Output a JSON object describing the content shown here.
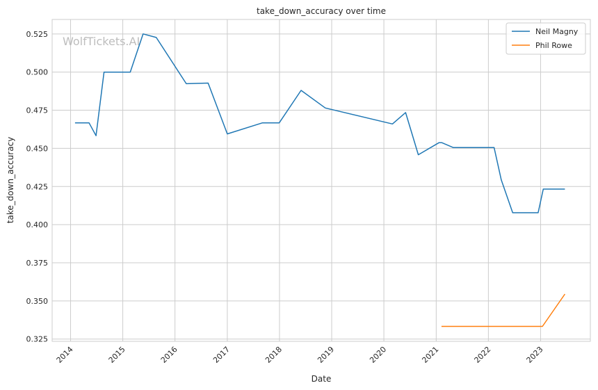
{
  "chart_data": {
    "type": "line",
    "title": "take_down_accuracy over time",
    "xlabel": "Date",
    "ylabel": "take_down_accuracy",
    "watermark": "WolfTickets.AI",
    "x_ticks": [
      "2014",
      "2015",
      "2016",
      "2017",
      "2018",
      "2019",
      "2020",
      "2021",
      "2022",
      "2023"
    ],
    "y_ticks": [
      "0.325",
      "0.350",
      "0.375",
      "0.400",
      "0.425",
      "0.450",
      "0.475",
      "0.500",
      "0.525"
    ],
    "xlim": [
      "2013-08-25",
      "2023-12-15"
    ],
    "ylim": [
      0.3235,
      0.5345
    ],
    "grid": true,
    "legend_position": "top-right",
    "series": [
      {
        "name": "Neil Magny",
        "color": "#1f77b4",
        "points": [
          [
            "2014-02-01",
            0.4667
          ],
          [
            "2014-05-10",
            0.4667
          ],
          [
            "2014-06-28",
            0.4583
          ],
          [
            "2014-08-23",
            0.5
          ],
          [
            "2015-02-22",
            0.5
          ],
          [
            "2015-05-23",
            0.525
          ],
          [
            "2015-08-23",
            0.5227
          ],
          [
            "2016-03-20",
            0.4924
          ],
          [
            "2016-08-20",
            0.4928
          ],
          [
            "2017-01-01",
            0.4595
          ],
          [
            "2017-09-02",
            0.4667
          ],
          [
            "2017-12-30",
            0.4667
          ],
          [
            "2018-06-01",
            0.488
          ],
          [
            "2018-11-17",
            0.4765
          ],
          [
            "2020-03-01",
            0.466
          ],
          [
            "2020-06-01",
            0.4735
          ],
          [
            "2020-08-29",
            0.4458
          ],
          [
            "2021-01-20",
            0.4537
          ],
          [
            "2021-02-10",
            0.4537
          ],
          [
            "2021-05-01",
            0.4505
          ],
          [
            "2022-01-01",
            0.4505
          ],
          [
            "2022-02-10",
            0.4505
          ],
          [
            "2022-04-01",
            0.4293
          ],
          [
            "2022-06-20",
            0.4078
          ],
          [
            "2022-12-15",
            0.4078
          ],
          [
            "2023-01-20",
            0.4233
          ],
          [
            "2023-06-20",
            0.4233
          ]
        ]
      },
      {
        "name": "Phil Rowe",
        "color": "#ff7f0e",
        "points": [
          [
            "2021-02-07",
            0.3333
          ],
          [
            "2022-09-01",
            0.3333
          ],
          [
            "2023-01-14",
            0.3333
          ],
          [
            "2023-06-20",
            0.3545
          ]
        ]
      }
    ]
  }
}
